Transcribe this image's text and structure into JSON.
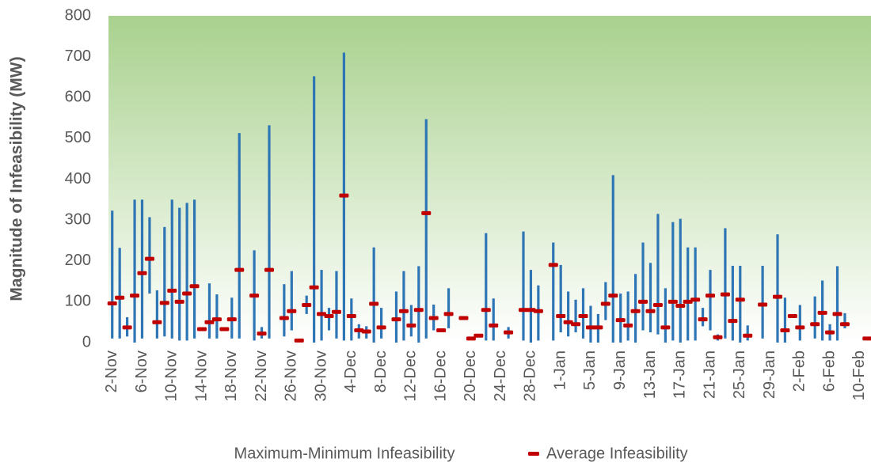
{
  "chart_data": {
    "type": "hilo",
    "y_label": "Magnitude of Infeasibility (MW)",
    "categories": [
      "2-Nov",
      null,
      null,
      null,
      "6-Nov",
      null,
      null,
      null,
      "10-Nov",
      null,
      null,
      null,
      "14-Nov",
      null,
      null,
      null,
      "18-Nov",
      null,
      null,
      null,
      "22-Nov",
      null,
      null,
      null,
      "26-Nov",
      null,
      null,
      null,
      "30-Nov",
      null,
      null,
      null,
      "4-Dec",
      null,
      null,
      null,
      "8-Dec",
      null,
      null,
      null,
      "12-Dec",
      null,
      null,
      null,
      "16-Dec",
      null,
      null,
      null,
      "20-Dec",
      null,
      null,
      null,
      "24-Dec",
      null,
      null,
      null,
      "28-Dec",
      null,
      null,
      null,
      "1-Jan",
      null,
      null,
      null,
      "5-Jan",
      null,
      null,
      null,
      "9-Jan",
      null,
      null,
      null,
      "13-Jan",
      null,
      null,
      null,
      "17-Jan",
      null,
      null,
      null,
      "21-Jan",
      null,
      null,
      null,
      "25-Jan",
      null,
      null,
      null,
      "29-Jan",
      null,
      null,
      null,
      "2-Feb",
      null,
      null,
      null,
      "6-Feb",
      null,
      null,
      null,
      "10-Feb",
      null
    ],
    "series": [
      {
        "name": "Maximum-Minimum Infeasibility",
        "color": "#2e75b6",
        "high": [
          323,
          232,
          62,
          350,
          350,
          307,
          128,
          283,
          350,
          330,
          342,
          350,
          null,
          145,
          118,
          null,
          110,
          513,
          null,
          226,
          38,
          532,
          null,
          143,
          175,
          null,
          115,
          652,
          178,
          85,
          175,
          710,
          108,
          45,
          40,
          233,
          85,
          null,
          125,
          175,
          92,
          187,
          547,
          93,
          null,
          133,
          null,
          null,
          null,
          null,
          268,
          108,
          null,
          38,
          null,
          272,
          178,
          140,
          null,
          245,
          190,
          125,
          105,
          133,
          90,
          70,
          148,
          410,
          120,
          125,
          168,
          245,
          195,
          315,
          133,
          295,
          303,
          233,
          233,
          85,
          178,
          20,
          280,
          188,
          188,
          42,
          null,
          188,
          null,
          265,
          110,
          null,
          92,
          null,
          113,
          152,
          45,
          187,
          72,
          null,
          null,
          null
        ],
        "low": [
          10,
          10,
          15,
          0,
          10,
          120,
          10,
          15,
          10,
          5,
          5,
          10,
          null,
          10,
          10,
          null,
          10,
          10,
          null,
          5,
          10,
          10,
          null,
          15,
          30,
          null,
          70,
          0,
          5,
          30,
          10,
          5,
          5,
          10,
          10,
          0,
          10,
          null,
          0,
          5,
          15,
          0,
          10,
          30,
          null,
          35,
          null,
          null,
          null,
          null,
          5,
          5,
          null,
          10,
          null,
          5,
          0,
          5,
          null,
          5,
          25,
          15,
          25,
          10,
          0,
          0,
          55,
          0,
          0,
          5,
          0,
          30,
          25,
          20,
          0,
          5,
          0,
          5,
          5,
          40,
          30,
          5,
          10,
          5,
          0,
          5,
          null,
          10,
          null,
          0,
          0,
          null,
          5,
          null,
          10,
          5,
          5,
          5,
          35,
          null,
          null,
          null
        ]
      },
      {
        "name": "Average Infeasibility",
        "color": "#c00000",
        "values": [
          96,
          110,
          37,
          115,
          170,
          205,
          50,
          97,
          127,
          100,
          120,
          138,
          33,
          50,
          57,
          33,
          57,
          178,
          null,
          115,
          22,
          178,
          null,
          60,
          77,
          5,
          92,
          135,
          70,
          65,
          75,
          360,
          65,
          30,
          27,
          95,
          37,
          null,
          57,
          77,
          42,
          80,
          317,
          60,
          30,
          70,
          null,
          60,
          10,
          17,
          80,
          42,
          null,
          25,
          null,
          80,
          80,
          77,
          null,
          190,
          65,
          50,
          45,
          65,
          37,
          37,
          95,
          115,
          55,
          42,
          77,
          100,
          77,
          92,
          37,
          100,
          90,
          100,
          105,
          57,
          115,
          13,
          118,
          53,
          105,
          17,
          null,
          93,
          null,
          112,
          30,
          65,
          37,
          null,
          45,
          73,
          25,
          70,
          45,
          null,
          null,
          10
        ]
      }
    ],
    "ylim": [
      0,
      800
    ],
    "yticks": [
      0,
      100,
      200,
      300,
      400,
      500,
      600,
      700,
      800
    ],
    "grid": false
  }
}
